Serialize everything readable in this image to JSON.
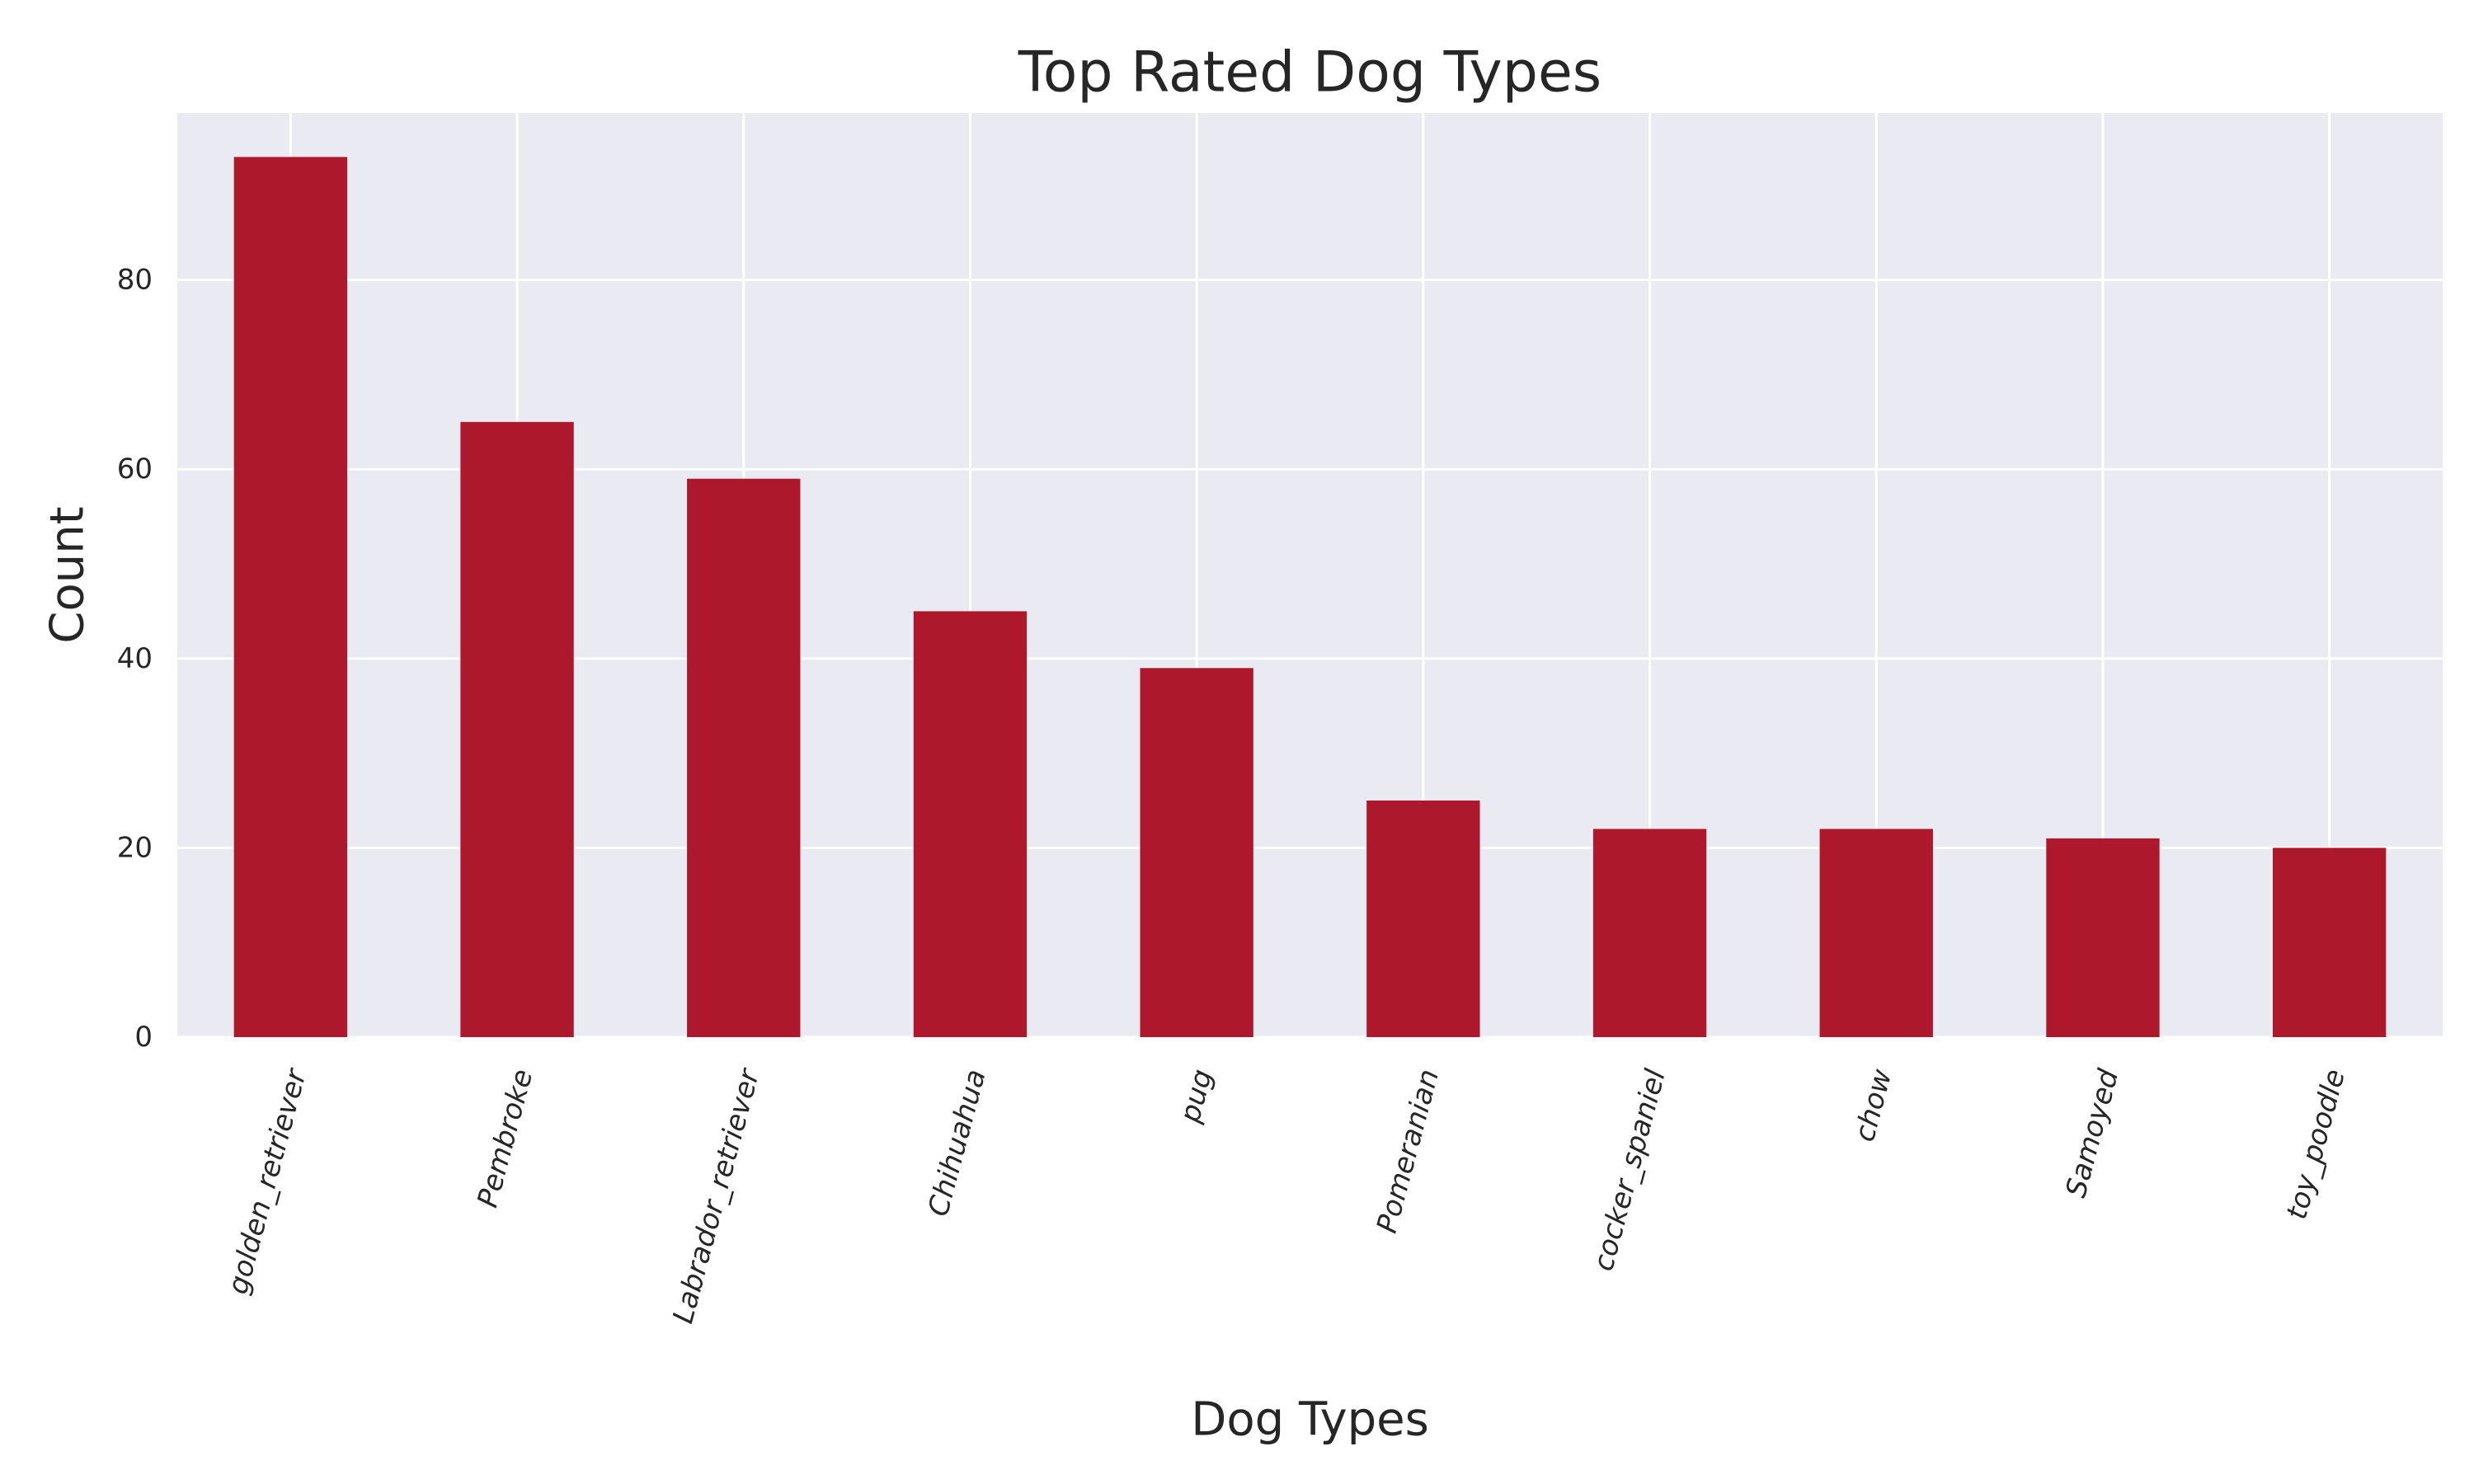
{
  "chart_data": {
    "type": "bar",
    "title": "Top Rated Dog Types",
    "xlabel": "Dog Types",
    "ylabel": "Count",
    "categories": [
      "golden_retriever",
      "Pembroke",
      "Labrador_retriever",
      "Chihuahua",
      "pug",
      "Pomeranian",
      "cocker_spaniel",
      "chow",
      "Samoyed",
      "toy_poodle"
    ],
    "values": [
      93,
      65,
      59,
      45,
      39,
      25,
      22,
      22,
      21,
      20
    ],
    "ylim": [
      0,
      97.65
    ],
    "yticks": [
      0,
      20,
      40,
      60,
      80
    ],
    "grid": true,
    "legend": "none",
    "colors": {
      "bar": "#ae182c",
      "plot_background": "#eaeaf2",
      "grid": "#ffffff",
      "text": "#262626"
    }
  }
}
